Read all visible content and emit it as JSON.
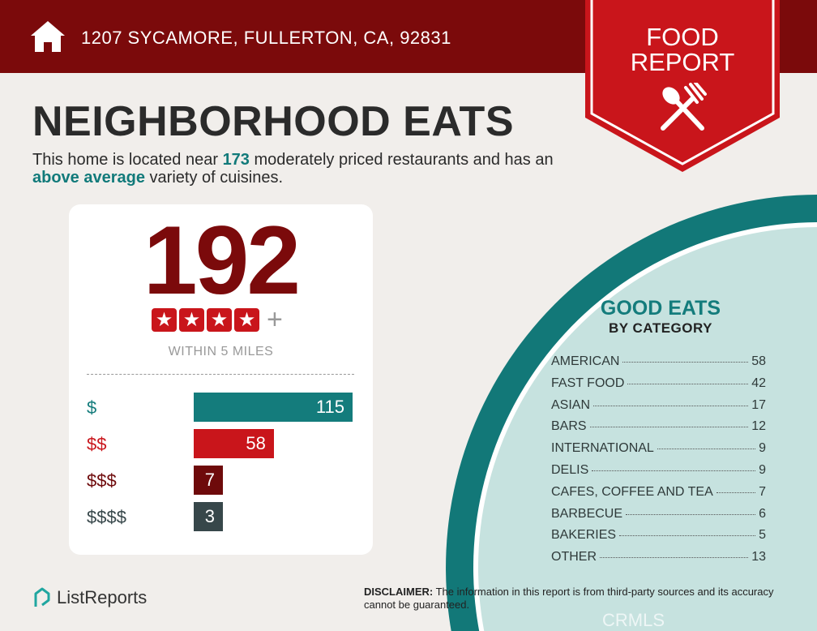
{
  "header": {
    "address": "1207 SYCAMORE, FULLERTON, CA, 92831",
    "badge_line1": "FOOD",
    "badge_line2": "REPORT"
  },
  "title": "NEIGHBORHOOD EATS",
  "intro": {
    "p1": "This home is located near ",
    "count": "173",
    "p2": " moderately priced restaurants and has an ",
    "variety": "above average",
    "p3": " variety of cuisines."
  },
  "summary": {
    "total": "192",
    "stars": 4,
    "plus": "+",
    "within": "WITHIN 5 MILES"
  },
  "price_levels": [
    {
      "label": "$",
      "value": 115,
      "color": "#147c7c"
    },
    {
      "label": "$$",
      "value": 58,
      "color": "#c9151b"
    },
    {
      "label": "$$$",
      "value": 7,
      "color": "#6e0a0b"
    },
    {
      "label": "$$$$",
      "value": 3,
      "color": "#37474a"
    }
  ],
  "categories_panel": {
    "title": "GOOD EATS",
    "subtitle": "BY CATEGORY",
    "items": [
      {
        "name": "AMERICAN",
        "count": "58"
      },
      {
        "name": "FAST FOOD",
        "count": "42"
      },
      {
        "name": "ASIAN",
        "count": "17"
      },
      {
        "name": "BARS",
        "count": "12"
      },
      {
        "name": "INTERNATIONAL",
        "count": "9"
      },
      {
        "name": "DELIS",
        "count": "9"
      },
      {
        "name": "CAFES, COFFEE AND TEA",
        "count": "7"
      },
      {
        "name": "BARBECUE",
        "count": "6"
      },
      {
        "name": "BAKERIES",
        "count": "5"
      },
      {
        "name": "OTHER",
        "count": "13"
      }
    ]
  },
  "footer": {
    "brand": "ListReports",
    "disclaimer_label": "DISCLAIMER:",
    "disclaimer": " The information in this report is from third-party sources and its accuracy cannot be guaranteed.",
    "watermark": "CRMLS"
  },
  "colors": {
    "brand_red": "#7b0a0b",
    "accent_red": "#c9151b",
    "teal": "#147c7c",
    "light_teal": "#c6e2df"
  }
}
